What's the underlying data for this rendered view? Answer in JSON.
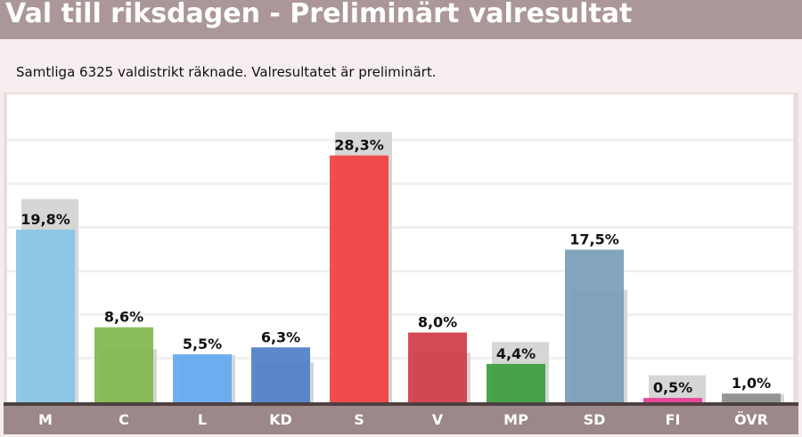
{
  "header": {
    "title": "Val till riksdagen - Preliminärt valresultat"
  },
  "status": {
    "text": "Samtliga 6325 valdistrikt räknade. Valresultatet är preliminärt."
  },
  "chart_data": {
    "type": "bar",
    "title": "",
    "xlabel": "",
    "ylabel": "",
    "ylim": [
      0,
      30
    ],
    "grid": true,
    "categories": [
      "M",
      "C",
      "L",
      "KD",
      "S",
      "V",
      "MP",
      "SD",
      "FI",
      "ÖVR"
    ],
    "series": [
      {
        "values": [
          19.8,
          8.6,
          5.5,
          6.3,
          28.3,
          8.0,
          4.4,
          17.5,
          0.5,
          1.0
        ],
        "labels": [
          "19,8%",
          "8,6%",
          "5,5%",
          "6,3%",
          "28,3%",
          "8,0%",
          "4,4%",
          "17,5%",
          "0,5%",
          "1,0%"
        ]
      },
      {
        "values": [
          23.3,
          6.1,
          5.4,
          4.6,
          31.0,
          5.7,
          6.9,
          12.9,
          3.1,
          0.9
        ]
      }
    ],
    "colors": [
      "#87c6e6",
      "#82b84e",
      "#64aaf1",
      "#4f80c8",
      "#f14141",
      "#d13d48",
      "#3a9e3e",
      "#7a9eb8",
      "#e63d95",
      "#8f8f8f"
    ],
    "shadow_color": "#d6d6d6"
  }
}
